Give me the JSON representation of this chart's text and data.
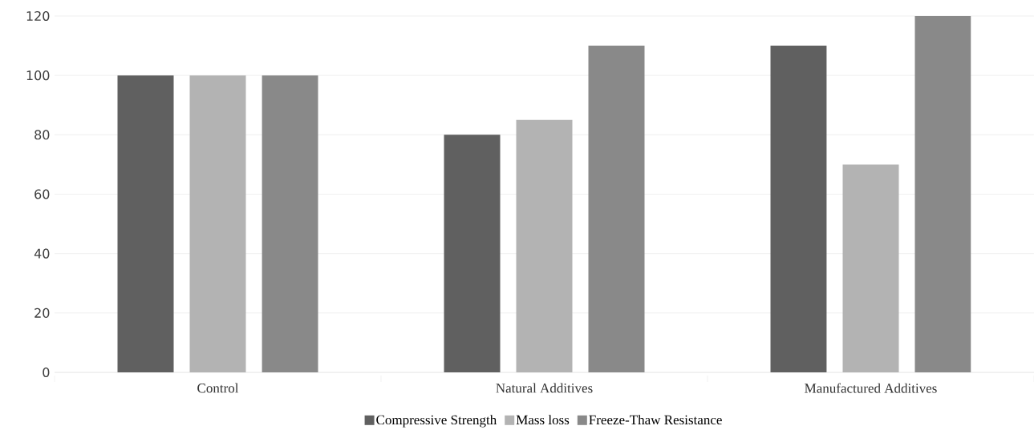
{
  "chart_data": {
    "type": "bar",
    "categories": [
      "Control",
      "Natural Additives",
      "Manufactured Additives"
    ],
    "series": [
      {
        "name": "Compressive Strength",
        "color": "#606060",
        "values": [
          100,
          80,
          110
        ]
      },
      {
        "name": "Mass loss",
        "color": "#b3b3b3",
        "values": [
          100,
          85,
          70
        ]
      },
      {
        "name": "Freeze-Thaw Resistance",
        "color": "#898989",
        "values": [
          100,
          110,
          120
        ]
      }
    ],
    "ylim": [
      0,
      120
    ],
    "yticks": [
      0,
      20,
      40,
      60,
      80,
      100,
      120
    ],
    "grid": "y",
    "legend": "bottom"
  }
}
